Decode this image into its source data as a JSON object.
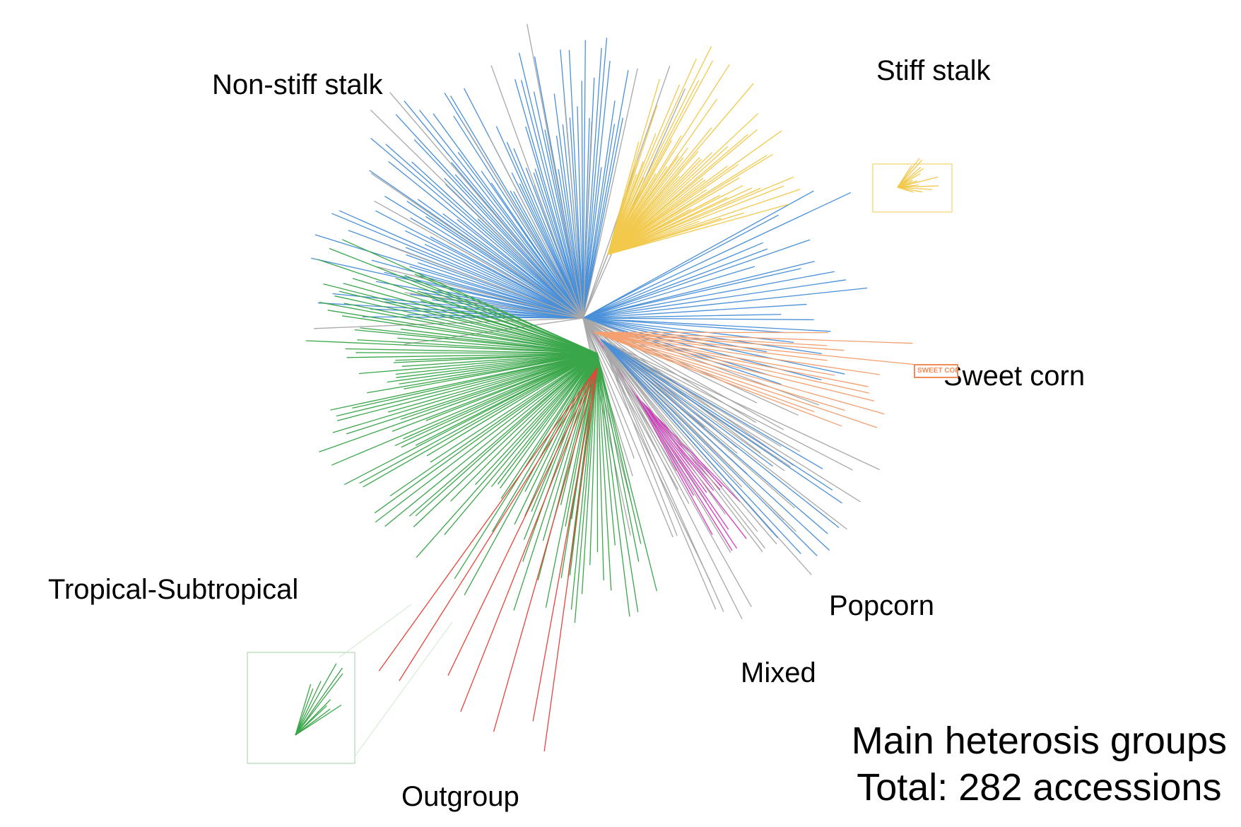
{
  "groups": {
    "non_stiff_stalk": "Non-stiff stalk",
    "stiff_stalk": "Stiff stalk",
    "sweet_corn": "Sweet corn",
    "tropical_subtropical": "Tropical-Subtropical",
    "popcorn": "Popcorn",
    "mixed": "Mixed",
    "outgroup": "Outgroup"
  },
  "summary": {
    "line1": "Main heterosis groups",
    "line2": "Total: 282 accessions"
  },
  "sweet_corn_tag": "SWEET CORN",
  "colors": {
    "non_stiff_stalk": "#4a90d9",
    "stiff_stalk": "#f2c94c",
    "sweet_corn": "#f4a070",
    "tropical_subtropical": "#3aa64a",
    "popcorn": "#d63ac0",
    "mixed": "#a8a8a8",
    "outgroup": "#e8443a"
  }
}
